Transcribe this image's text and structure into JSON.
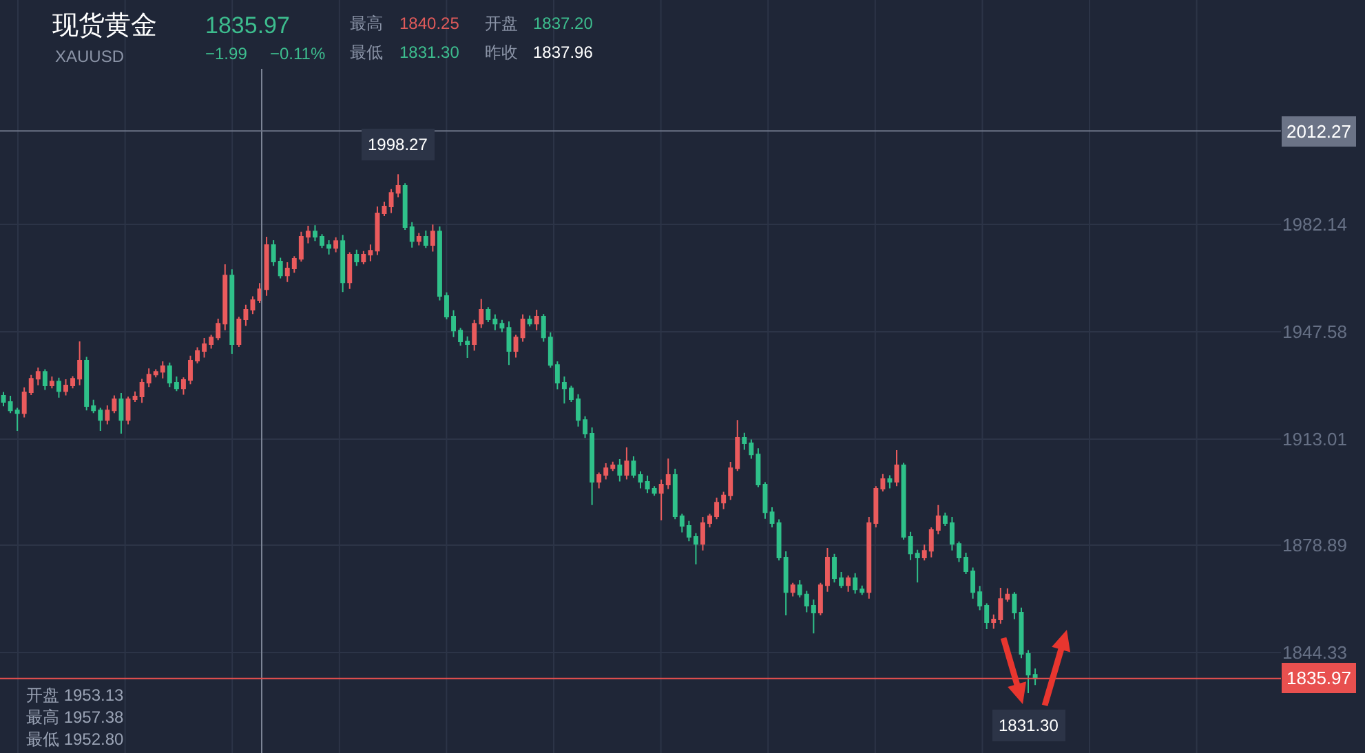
{
  "chart_data": {
    "type": "candlestick",
    "title": "现货黄金",
    "subtitle": "XAUUSD",
    "categories": [
      null,
      null,
      null,
      null,
      null,
      null,
      null,
      null,
      null,
      null,
      null,
      null,
      null,
      null,
      null,
      null,
      null,
      null,
      null,
      null,
      null,
      null,
      null,
      null,
      null,
      null,
      null,
      null,
      null,
      null,
      null,
      null,
      null,
      null,
      null,
      null,
      null,
      null,
      null,
      null,
      null,
      null,
      null,
      null,
      null,
      null,
      null,
      null,
      null,
      null,
      null,
      null,
      null,
      null,
      null,
      null,
      null,
      null,
      null,
      null,
      null,
      null,
      null,
      null,
      null,
      null,
      null,
      null,
      null,
      null,
      null,
      null,
      null,
      null,
      null,
      null,
      null,
      null,
      null,
      null,
      null,
      null,
      null,
      null,
      null,
      null,
      null,
      null,
      null,
      null,
      null,
      null,
      null,
      null,
      null,
      null,
      null,
      null,
      null,
      null,
      null,
      null,
      null,
      null,
      null,
      null,
      null,
      null,
      null,
      null,
      null,
      null,
      null,
      null,
      null,
      null,
      null,
      null,
      null,
      null,
      null,
      null,
      null,
      null,
      null,
      null,
      null,
      null,
      null,
      null,
      null,
      null,
      null,
      null,
      null,
      null,
      null,
      null,
      null,
      null,
      null,
      null,
      null,
      null,
      null,
      null,
      null,
      null,
      null,
      null,
      null,
      null,
      null,
      null,
      null,
      null,
      null,
      null,
      null,
      null,
      null,
      null,
      null,
      null,
      null,
      null,
      null,
      null,
      null,
      null,
      null,
      null,
      null,
      null,
      null,
      null,
      null,
      null,
      null,
      null,
      null,
      null,
      null,
      null,
      null
    ],
    "ohlc": [
      [
        1927.0,
        1928.2,
        1923.6,
        1925.0
      ],
      [
        1925.0,
        1927.0,
        1921.4,
        1922.3
      ],
      [
        1922.3,
        1923.1,
        1915.7,
        1921.4
      ],
      [
        1921.4,
        1929.7,
        1920.0,
        1928.1
      ],
      [
        1928.1,
        1933.7,
        1927.2,
        1932.5
      ],
      [
        1932.5,
        1936.1,
        1930.4,
        1934.7
      ],
      [
        1934.7,
        1935.5,
        1928.9,
        1930.3
      ],
      [
        1930.3,
        1933.2,
        1929.4,
        1931.6
      ],
      [
        1931.6,
        1932.8,
        1926.4,
        1928.5
      ],
      [
        1928.5,
        1932.3,
        1927.1,
        1930.3
      ],
      [
        1930.3,
        1933.3,
        1929.4,
        1932.5
      ],
      [
        1932.5,
        1944.5,
        1930.4,
        1938.3
      ],
      [
        1938.3,
        1939.5,
        1922.3,
        1923.7
      ],
      [
        1923.7,
        1925.7,
        1921.4,
        1922.3
      ],
      [
        1922.3,
        1923.1,
        1915.7,
        1919.2
      ],
      [
        1919.2,
        1923.9,
        1917.8,
        1922.3
      ],
      [
        1922.3,
        1927.1,
        1921.4,
        1925.9
      ],
      [
        1925.9,
        1927.9,
        1914.8,
        1919.2
      ],
      [
        1919.2,
        1926.7,
        1917.8,
        1925.9
      ],
      [
        1925.9,
        1928.4,
        1925.0,
        1926.8
      ],
      [
        1926.8,
        1932.4,
        1924.7,
        1931.2
      ],
      [
        1931.2,
        1935.8,
        1929.8,
        1933.8
      ],
      [
        1933.8,
        1935.5,
        1932.9,
        1934.7
      ],
      [
        1934.7,
        1938.1,
        1932.6,
        1936.5
      ],
      [
        1936.5,
        1937.7,
        1929.8,
        1931.2
      ],
      [
        1931.2,
        1933.2,
        1928.5,
        1929.4
      ],
      [
        1929.4,
        1932.9,
        1927.3,
        1932.1
      ],
      [
        1932.1,
        1939.9,
        1930.7,
        1938.3
      ],
      [
        1938.3,
        1942.6,
        1937.4,
        1941.4
      ],
      [
        1941.4,
        1945.6,
        1939.3,
        1943.6
      ],
      [
        1943.6,
        1946.6,
        1942.2,
        1945.8
      ],
      [
        1945.8,
        1951.8,
        1944.9,
        1950.2
      ],
      [
        1950.2,
        1969.3,
        1948.1,
        1965.7
      ],
      [
        1965.7,
        1967.7,
        1940.5,
        1943.6
      ],
      [
        1943.6,
        1952.4,
        1942.7,
        1951.6
      ],
      [
        1951.6,
        1956.3,
        1949.5,
        1954.7
      ],
      [
        1954.7,
        1959.0,
        1953.3,
        1957.8
      ],
      [
        1957.8,
        1963.3,
        1956.9,
        1961.3
      ],
      [
        1961.3,
        1978.2,
        1959.2,
        1975.5
      ],
      [
        1975.5,
        1977.1,
        1968.8,
        1970.2
      ],
      [
        1970.2,
        1971.4,
        1964.8,
        1965.7
      ],
      [
        1965.7,
        1970.0,
        1963.6,
        1968.0
      ],
      [
        1968.0,
        1971.9,
        1966.6,
        1971.1
      ],
      [
        1971.1,
        1979.8,
        1970.2,
        1978.2
      ],
      [
        1978.2,
        1981.7,
        1976.1,
        1979.9
      ],
      [
        1979.9,
        1981.9,
        1976.8,
        1978.2
      ],
      [
        1978.2,
        1979.0,
        1974.6,
        1975.5
      ],
      [
        1975.5,
        1977.1,
        1972.5,
        1974.6
      ],
      [
        1974.6,
        1978.0,
        1973.2,
        1976.8
      ],
      [
        1976.8,
        1978.8,
        1960.4,
        1963.5
      ],
      [
        1963.5,
        1973.2,
        1961.4,
        1972.4
      ],
      [
        1972.4,
        1974.0,
        1968.8,
        1970.2
      ],
      [
        1970.2,
        1973.6,
        1969.3,
        1972.4
      ],
      [
        1972.4,
        1975.7,
        1970.3,
        1973.7
      ],
      [
        1973.7,
        1987.9,
        1972.3,
        1985.7
      ],
      [
        1985.7,
        1989.5,
        1984.8,
        1987.9
      ],
      [
        1987.9,
        1993.5,
        1985.8,
        1992.3
      ],
      [
        1992.3,
        1998.27,
        1990.9,
        1994.6
      ],
      [
        1994.6,
        1995.4,
        1980.4,
        1981.3
      ],
      [
        1981.3,
        1982.9,
        1974.7,
        1976.8
      ],
      [
        1976.8,
        1979.4,
        1975.4,
        1978.2
      ],
      [
        1978.2,
        1980.2,
        1974.6,
        1975.5
      ],
      [
        1975.5,
        1982.1,
        1973.4,
        1979.9
      ],
      [
        1979.9,
        1981.5,
        1957.7,
        1959.1
      ],
      [
        1959.1,
        1960.3,
        1951.6,
        1952.5
      ],
      [
        1952.5,
        1954.5,
        1945.9,
        1948.0
      ],
      [
        1948.0,
        1948.8,
        1943.1,
        1944.5
      ],
      [
        1944.5,
        1946.1,
        1939.2,
        1943.6
      ],
      [
        1943.6,
        1951.4,
        1941.5,
        1950.2
      ],
      [
        1950.2,
        1958.2,
        1948.8,
        1954.7
      ],
      [
        1954.7,
        1955.5,
        1950.7,
        1951.6
      ],
      [
        1951.6,
        1953.2,
        1948.1,
        1950.2
      ],
      [
        1950.2,
        1951.4,
        1947.5,
        1948.9
      ],
      [
        1948.9,
        1950.9,
        1936.9,
        1941.4
      ],
      [
        1941.4,
        1946.6,
        1939.3,
        1945.8
      ],
      [
        1945.8,
        1953.2,
        1944.4,
        1951.6
      ],
      [
        1951.6,
        1952.8,
        1949.3,
        1950.2
      ],
      [
        1950.2,
        1954.7,
        1948.1,
        1952.5
      ],
      [
        1952.5,
        1953.3,
        1944.4,
        1945.8
      ],
      [
        1945.8,
        1947.4,
        1936.0,
        1936.9
      ],
      [
        1936.9,
        1938.1,
        1929.1,
        1931.2
      ],
      [
        1931.2,
        1933.2,
        1924.5,
        1929.4
      ],
      [
        1929.4,
        1930.2,
        1925.0,
        1925.9
      ],
      [
        1925.9,
        1927.5,
        1917.1,
        1919.2
      ],
      [
        1919.2,
        1920.4,
        1913.4,
        1914.8
      ],
      [
        1914.8,
        1916.8,
        1891.8,
        1899.3
      ],
      [
        1899.3,
        1902.3,
        1897.2,
        1901.5
      ],
      [
        1901.5,
        1905.3,
        1900.1,
        1903.7
      ],
      [
        1903.7,
        1905.8,
        1902.8,
        1904.6
      ],
      [
        1904.6,
        1906.6,
        1899.4,
        1901.5
      ],
      [
        1901.5,
        1910.4,
        1900.1,
        1905.9
      ],
      [
        1905.9,
        1907.5,
        1900.6,
        1901.5
      ],
      [
        1901.5,
        1902.7,
        1897.2,
        1899.3
      ],
      [
        1899.3,
        1901.3,
        1895.7,
        1897.1
      ],
      [
        1897.1,
        1897.9,
        1894.8,
        1895.7
      ],
      [
        1895.7,
        1900.0,
        1886.9,
        1898.4
      ],
      [
        1898.4,
        1906.8,
        1897.0,
        1901.5
      ],
      [
        1901.5,
        1903.5,
        1887.3,
        1888.2
      ],
      [
        1888.2,
        1889.0,
        1883.0,
        1885.1
      ],
      [
        1885.1,
        1886.7,
        1880.2,
        1881.6
      ],
      [
        1881.6,
        1882.8,
        1872.7,
        1879.3
      ],
      [
        1879.3,
        1888.0,
        1877.2,
        1886.0
      ],
      [
        1886.0,
        1889.0,
        1884.6,
        1888.2
      ],
      [
        1888.2,
        1894.2,
        1887.3,
        1892.6
      ],
      [
        1892.6,
        1896.1,
        1890.5,
        1894.9
      ],
      [
        1894.9,
        1905.7,
        1893.5,
        1903.7
      ],
      [
        1903.7,
        1919.2,
        1902.8,
        1913.5
      ],
      [
        1913.5,
        1915.1,
        1909.6,
        1911.7
      ],
      [
        1911.7,
        1912.9,
        1906.7,
        1908.1
      ],
      [
        1908.1,
        1910.1,
        1897.5,
        1898.4
      ],
      [
        1898.4,
        1899.2,
        1887.4,
        1889.5
      ],
      [
        1889.5,
        1891.1,
        1884.6,
        1886.0
      ],
      [
        1886.0,
        1887.2,
        1874.0,
        1874.9
      ],
      [
        1874.9,
        1876.9,
        1856.3,
        1863.8
      ],
      [
        1863.8,
        1866.8,
        1862.4,
        1866.0
      ],
      [
        1866.0,
        1867.6,
        1862.1,
        1863.0
      ],
      [
        1863.0,
        1864.2,
        1857.3,
        1859.4
      ],
      [
        1859.4,
        1861.4,
        1850.5,
        1857.2
      ],
      [
        1857.2,
        1866.8,
        1856.3,
        1866.0
      ],
      [
        1866.0,
        1878.0,
        1863.9,
        1874.9
      ],
      [
        1874.9,
        1876.1,
        1866.9,
        1868.3
      ],
      [
        1868.3,
        1870.3,
        1865.1,
        1866.0
      ],
      [
        1866.0,
        1869.1,
        1863.9,
        1868.3
      ],
      [
        1868.3,
        1869.9,
        1863.3,
        1864.7
      ],
      [
        1864.7,
        1865.9,
        1862.9,
        1863.8
      ],
      [
        1863.8,
        1888.0,
        1861.7,
        1886.0
      ],
      [
        1886.0,
        1897.9,
        1884.6,
        1897.1
      ],
      [
        1897.1,
        1901.8,
        1896.2,
        1900.2
      ],
      [
        1900.2,
        1901.4,
        1897.2,
        1899.3
      ],
      [
        1899.3,
        1909.5,
        1897.9,
        1904.6
      ],
      [
        1904.6,
        1905.4,
        1880.7,
        1881.6
      ],
      [
        1881.6,
        1883.2,
        1874.1,
        1876.2
      ],
      [
        1876.2,
        1877.4,
        1866.9,
        1874.9
      ],
      [
        1874.9,
        1879.1,
        1874.0,
        1877.1
      ],
      [
        1877.1,
        1884.6,
        1875.0,
        1883.8
      ],
      [
        1883.8,
        1891.8,
        1882.4,
        1888.2
      ],
      [
        1888.2,
        1889.4,
        1885.1,
        1886.0
      ],
      [
        1886.0,
        1888.0,
        1877.2,
        1879.3
      ],
      [
        1879.3,
        1880.1,
        1873.5,
        1874.9
      ],
      [
        1874.9,
        1876.5,
        1869.6,
        1870.5
      ],
      [
        1870.5,
        1871.7,
        1861.7,
        1863.8
      ],
      [
        1863.8,
        1865.8,
        1858.0,
        1859.4
      ],
      [
        1859.4,
        1860.2,
        1851.9,
        1854.1
      ],
      [
        1854.1,
        1856.6,
        1852.0,
        1855.0
      ],
      [
        1855.0,
        1865.2,
        1853.6,
        1861.6
      ],
      [
        1861.6,
        1865.0,
        1860.7,
        1863.0
      ],
      [
        1863.0,
        1863.8,
        1855.1,
        1857.2
      ],
      [
        1857.2,
        1858.8,
        1842.5,
        1843.9
      ],
      [
        1843.9,
        1845.1,
        1831.3,
        1837.2
      ],
      [
        1837.2,
        1839.2,
        1833.9,
        1835.97
      ],
      null,
      null,
      null,
      null,
      null,
      null,
      null,
      null,
      null,
      null,
      null,
      null,
      null,
      null,
      null,
      null,
      null,
      null,
      null,
      null,
      null,
      null,
      null,
      null,
      null,
      null,
      null,
      null,
      null,
      null,
      null,
      null,
      null,
      null,
      null
    ],
    "colors": [
      "#2fc18a",
      "#2fc18a",
      "#2fc18a",
      "#ea5b5d",
      "#ea5b5d",
      "#ea5b5d",
      "#2fc18a",
      "#ea5b5d",
      "#2fc18a",
      "#ea5b5d",
      "#ea5b5d",
      "#ea5b5d",
      "#2fc18a",
      "#2fc18a",
      "#2fc18a",
      "#ea5b5d",
      "#ea5b5d",
      "#2fc18a",
      "#ea5b5d",
      "#ea5b5d",
      "#ea5b5d",
      "#ea5b5d",
      "#ea5b5d",
      "#ea5b5d",
      "#2fc18a",
      "#2fc18a",
      "#ea5b5d",
      "#ea5b5d",
      "#ea5b5d",
      "#ea5b5d",
      "#ea5b5d",
      "#ea5b5d",
      "#ea5b5d",
      "#2fc18a",
      "#ea5b5d",
      "#ea5b5d",
      "#ea5b5d",
      "#ea5b5d",
      "#ea5b5d",
      "#2fc18a",
      "#2fc18a",
      "#ea5b5d",
      "#ea5b5d",
      "#ea5b5d",
      "#ea5b5d",
      "#2fc18a",
      "#2fc18a",
      "#2fc18a",
      "#ea5b5d",
      "#2fc18a",
      "#ea5b5d",
      "#2fc18a",
      "#ea5b5d",
      "#ea5b5d",
      "#ea5b5d",
      "#ea5b5d",
      "#ea5b5d",
      "#ea5b5d",
      "#2fc18a",
      "#2fc18a",
      "#ea5b5d",
      "#2fc18a",
      "#ea5b5d",
      "#2fc18a",
      "#2fc18a",
      "#2fc18a",
      "#2fc18a",
      "#2fc18a",
      "#ea5b5d",
      "#ea5b5d",
      "#2fc18a",
      "#2fc18a",
      "#2fc18a",
      "#2fc18a",
      "#ea5b5d",
      "#ea5b5d",
      "#2fc18a",
      "#ea5b5d",
      "#2fc18a",
      "#2fc18a",
      "#2fc18a",
      "#2fc18a",
      "#2fc18a",
      "#2fc18a",
      "#2fc18a",
      "#2fc18a",
      "#ea5b5d",
      "#ea5b5d",
      "#ea5b5d",
      "#2fc18a",
      "#ea5b5d",
      "#2fc18a",
      "#2fc18a",
      "#2fc18a",
      "#2fc18a",
      "#ea5b5d",
      "#ea5b5d",
      "#2fc18a",
      "#2fc18a",
      "#2fc18a",
      "#2fc18a",
      "#ea5b5d",
      "#ea5b5d",
      "#ea5b5d",
      "#ea5b5d",
      "#ea5b5d",
      "#ea5b5d",
      "#2fc18a",
      "#2fc18a",
      "#2fc18a",
      "#2fc18a",
      "#2fc18a",
      "#2fc18a",
      "#2fc18a",
      "#ea5b5d",
      "#2fc18a",
      "#2fc18a",
      "#2fc18a",
      "#ea5b5d",
      "#ea5b5d",
      "#2fc18a",
      "#2fc18a",
      "#ea5b5d",
      "#2fc18a",
      "#2fc18a",
      "#ea5b5d",
      "#ea5b5d",
      "#ea5b5d",
      "#2fc18a",
      "#ea5b5d",
      "#2fc18a",
      "#2fc18a",
      "#2fc18a",
      "#ea5b5d",
      "#ea5b5d",
      "#ea5b5d",
      "#2fc18a",
      "#2fc18a",
      "#2fc18a",
      "#2fc18a",
      "#2fc18a",
      "#2fc18a",
      "#2fc18a",
      "#ea5b5d",
      "#ea5b5d",
      "#ea5b5d",
      "#2fc18a",
      "#2fc18a",
      "#2fc18a",
      "#2fc18a",
      null,
      null,
      null,
      null,
      null,
      null,
      null,
      null,
      null,
      null,
      null,
      null,
      null,
      null,
      null,
      null,
      null,
      null,
      null,
      null,
      null,
      null,
      null,
      null,
      null,
      null,
      null,
      null,
      null,
      null,
      null,
      null,
      null,
      null,
      null
    ],
    "ylim": [
      1812.0,
      2054.4
    ],
    "yticks": [
      1982.14,
      1947.58,
      1913.01,
      1878.89,
      1844.33
    ],
    "tick_labels": "y",
    "grid": true,
    "ref_lines": [
      {
        "axis": "y",
        "value": 2012.27,
        "label": "2012.27",
        "color": "#6b7386"
      },
      {
        "axis": "y",
        "value": 1835.97,
        "label": "1835.97",
        "color": "#e8504f"
      }
    ],
    "annotations": [
      "1835.97",
      "−1.99",
      "−0.11%",
      "最高",
      "1840.25",
      "开盘",
      "1837.20",
      "最低",
      "1831.30",
      "昨收",
      "1837.96",
      "开盘 1953.13",
      "最高 1957.38",
      "最低 1952.80",
      "1998.27",
      "1831.30"
    ]
  }
}
